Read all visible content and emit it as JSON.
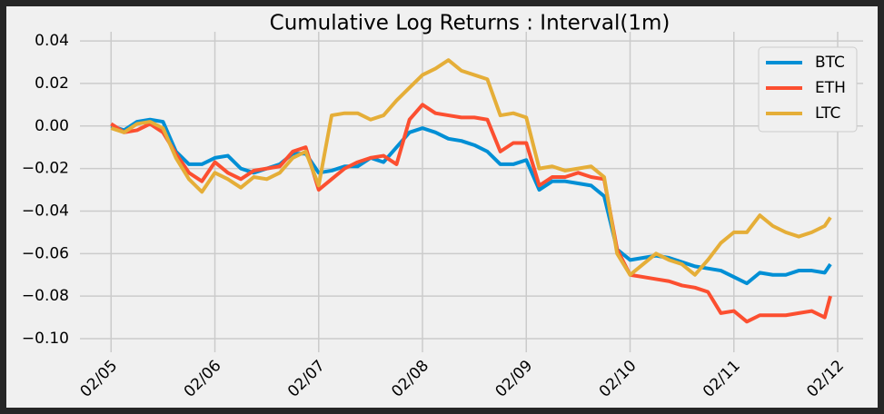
{
  "chart_data": {
    "type": "line",
    "title": "Cumulative Log Returns : Interval(1m)",
    "x": [
      5,
      5.125,
      5.25,
      5.375,
      5.5,
      5.625,
      5.75,
      5.875,
      6,
      6.125,
      6.25,
      6.375,
      6.5,
      6.625,
      6.75,
      6.875,
      7,
      7.125,
      7.25,
      7.375,
      7.5,
      7.625,
      7.75,
      7.875,
      8,
      8.125,
      8.25,
      8.375,
      8.5,
      8.625,
      8.75,
      8.875,
      9,
      9.125,
      9.25,
      9.375,
      9.5,
      9.625,
      9.75,
      9.875,
      10,
      10.125,
      10.25,
      10.375,
      10.5,
      10.625,
      10.75,
      10.875,
      11,
      11.125,
      11.25,
      11.375,
      11.5,
      11.625,
      11.75,
      11.875,
      11.93
    ],
    "series": [
      {
        "name": "BTC",
        "color": "#008fd5",
        "values": [
          0,
          -0.002,
          0.002,
          0.003,
          0.002,
          -0.012,
          -0.018,
          -0.018,
          -0.015,
          -0.014,
          -0.02,
          -0.022,
          -0.02,
          -0.018,
          -0.013,
          -0.013,
          -0.022,
          -0.021,
          -0.019,
          -0.019,
          -0.015,
          -0.017,
          -0.01,
          -0.003,
          -0.001,
          -0.003,
          -0.006,
          -0.007,
          -0.009,
          -0.012,
          -0.018,
          -0.018,
          -0.016,
          -0.03,
          -0.026,
          -0.026,
          -0.027,
          -0.028,
          -0.033,
          -0.058,
          -0.063,
          -0.062,
          -0.061,
          -0.062,
          -0.064,
          -0.066,
          -0.067,
          -0.068,
          -0.071,
          -0.074,
          -0.069,
          -0.07,
          -0.07,
          -0.068,
          -0.068,
          -0.069,
          -0.065
        ]
      },
      {
        "name": "ETH",
        "color": "#fc4f30",
        "values": [
          0.001,
          -0.003,
          -0.002,
          0.001,
          -0.003,
          -0.013,
          -0.022,
          -0.026,
          -0.017,
          -0.022,
          -0.025,
          -0.021,
          -0.02,
          -0.019,
          -0.012,
          -0.01,
          -0.03,
          -0.025,
          -0.02,
          -0.017,
          -0.015,
          -0.014,
          -0.018,
          0.003,
          0.01,
          0.006,
          0.005,
          0.004,
          0.004,
          0.003,
          -0.012,
          -0.008,
          -0.008,
          -0.028,
          -0.024,
          -0.024,
          -0.022,
          -0.024,
          -0.025,
          -0.058,
          -0.07,
          -0.071,
          -0.072,
          -0.073,
          -0.075,
          -0.076,
          -0.078,
          -0.088,
          -0.087,
          -0.092,
          -0.089,
          -0.089,
          -0.089,
          -0.088,
          -0.087,
          -0.09,
          -0.08
        ]
      },
      {
        "name": "LTC",
        "color": "#e5ae38",
        "values": [
          -0.001,
          -0.003,
          0.001,
          0.002,
          -0.001,
          -0.015,
          -0.025,
          -0.031,
          -0.022,
          -0.025,
          -0.029,
          -0.024,
          -0.025,
          -0.022,
          -0.015,
          -0.012,
          -0.028,
          0.005,
          0.006,
          0.006,
          0.003,
          0.005,
          0.012,
          0.018,
          0.024,
          0.027,
          0.031,
          0.026,
          0.024,
          0.022,
          0.005,
          0.006,
          0.004,
          -0.02,
          -0.019,
          -0.021,
          -0.02,
          -0.019,
          -0.024,
          -0.06,
          -0.07,
          -0.065,
          -0.06,
          -0.063,
          -0.065,
          -0.07,
          -0.063,
          -0.055,
          -0.05,
          -0.05,
          -0.042,
          -0.047,
          -0.05,
          -0.052,
          -0.05,
          -0.047,
          -0.043
        ]
      }
    ],
    "xlim": [
      4.7,
      12.245
    ],
    "xticks": [
      {
        "value": 5,
        "label": "02/05"
      },
      {
        "value": 6,
        "label": "02/06"
      },
      {
        "value": 7,
        "label": "02/07"
      },
      {
        "value": 8,
        "label": "02/08"
      },
      {
        "value": 9,
        "label": "02/09"
      },
      {
        "value": 10,
        "label": "02/10"
      },
      {
        "value": 11,
        "label": "02/11"
      },
      {
        "value": 12,
        "label": "02/12"
      }
    ],
    "ylim": [
      -0.1064,
      0.0443
    ],
    "yticks": [
      {
        "value": -0.1,
        "label": "−0.10"
      },
      {
        "value": -0.08,
        "label": "−0.08"
      },
      {
        "value": -0.06,
        "label": "−0.06"
      },
      {
        "value": -0.04,
        "label": "−0.04"
      },
      {
        "value": -0.02,
        "label": "−0.02"
      },
      {
        "value": 0,
        "label": "0.00"
      },
      {
        "value": 0.02,
        "label": "0.02"
      },
      {
        "value": 0.04,
        "label": "0.04"
      }
    ],
    "grid": true,
    "legend": "upper right"
  }
}
